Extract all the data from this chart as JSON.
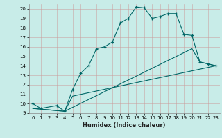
{
  "xlabel": "Humidex (Indice chaleur)",
  "bg_color": "#c8ece8",
  "line_color": "#006666",
  "grid_color": "#aadddd",
  "xlim": [
    -0.5,
    23.5
  ],
  "ylim": [
    9,
    20.5
  ],
  "yticks": [
    9,
    10,
    11,
    12,
    13,
    14,
    15,
    16,
    17,
    18,
    19,
    20
  ],
  "xticks": [
    0,
    1,
    2,
    3,
    4,
    5,
    6,
    7,
    8,
    9,
    10,
    11,
    12,
    13,
    14,
    15,
    16,
    17,
    18,
    19,
    20,
    21,
    22,
    23
  ],
  "line1_x": [
    0,
    1,
    3,
    4,
    5,
    6,
    7,
    8,
    9,
    10,
    11,
    12,
    13,
    14,
    15,
    16,
    17,
    18,
    19,
    20,
    21,
    22,
    23
  ],
  "line1_y": [
    10.0,
    9.5,
    9.8,
    9.2,
    11.5,
    13.2,
    14.0,
    15.8,
    16.0,
    16.5,
    18.5,
    19.0,
    20.2,
    20.1,
    19.0,
    19.2,
    19.5,
    19.5,
    17.3,
    17.2,
    14.4,
    14.2,
    14.0
  ],
  "line2_x": [
    0,
    4,
    5,
    23
  ],
  "line2_y": [
    9.5,
    9.2,
    10.8,
    14.0
  ],
  "line3_x": [
    0,
    4,
    20,
    21,
    23
  ],
  "line3_y": [
    9.5,
    9.2,
    15.8,
    14.4,
    14.0
  ]
}
